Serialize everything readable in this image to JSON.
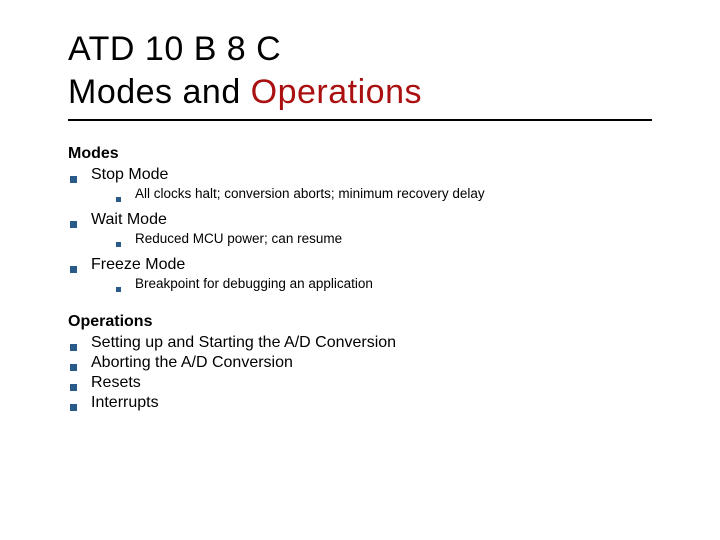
{
  "title": {
    "line1": "ATD 10 B 8 C",
    "line2_prefix": "Modes and ",
    "line2_highlight": "Operations"
  },
  "modes": {
    "heading": "Modes",
    "items": [
      {
        "label": "Stop Mode",
        "subitems": [
          "All clocks halt; conversion aborts; minimum recovery delay"
        ]
      },
      {
        "label": "Wait Mode",
        "subitems": [
          "Reduced MCU power; can resume"
        ]
      },
      {
        "label": "Freeze Mode",
        "subitems": [
          "Breakpoint for debugging an application"
        ]
      }
    ]
  },
  "operations": {
    "heading": "Operations",
    "items": [
      "Setting up and Starting the A/D Conversion",
      "Aborting the A/D Conversion",
      "Resets",
      "Interrupts"
    ]
  },
  "style": {
    "bullet_color": "#2a5a8a",
    "highlight_color": "#aa1010",
    "text_color": "#000000",
    "background_color": "#ffffff",
    "title_fontsize": 34,
    "heading_fontsize": 16,
    "l1_fontsize": 16,
    "l2_fontsize": 13.5
  }
}
